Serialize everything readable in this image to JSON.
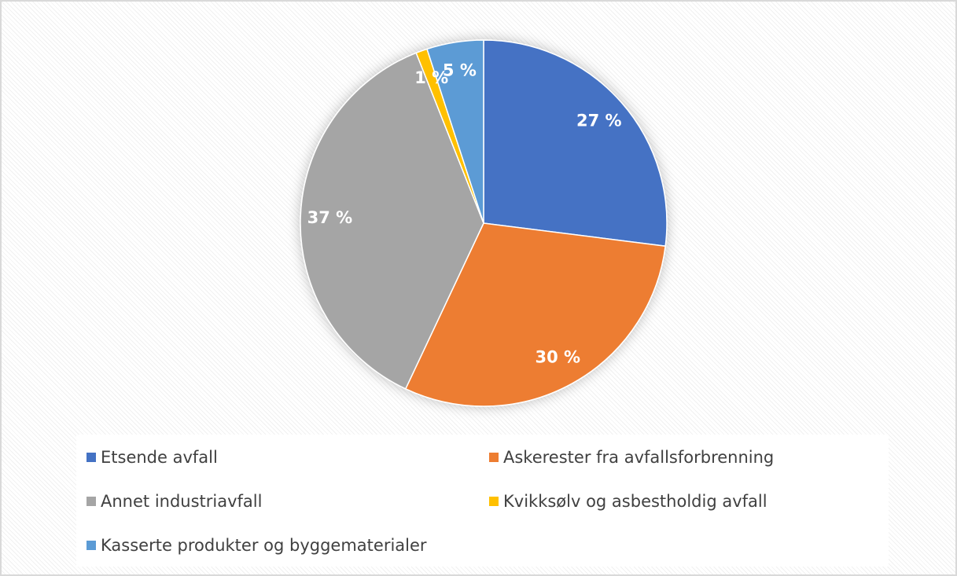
{
  "chart_data": {
    "type": "pie",
    "categories": [
      "Etsende avfall",
      "Askerester fra avfallsforbrenning",
      "Annet industriavfall",
      "Kvikksølv og asbestholdig avfall",
      "Kasserte produkter og byggematerialer"
    ],
    "values": [
      27,
      30,
      37,
      1,
      5
    ],
    "value_labels": [
      "27 %",
      "30 %",
      "37 %",
      "1 %",
      "5 %"
    ],
    "colors": [
      "#4472c4",
      "#ed7d31",
      "#a5a5a5",
      "#ffc000",
      "#5b9bd5"
    ],
    "legend": "bottom"
  }
}
